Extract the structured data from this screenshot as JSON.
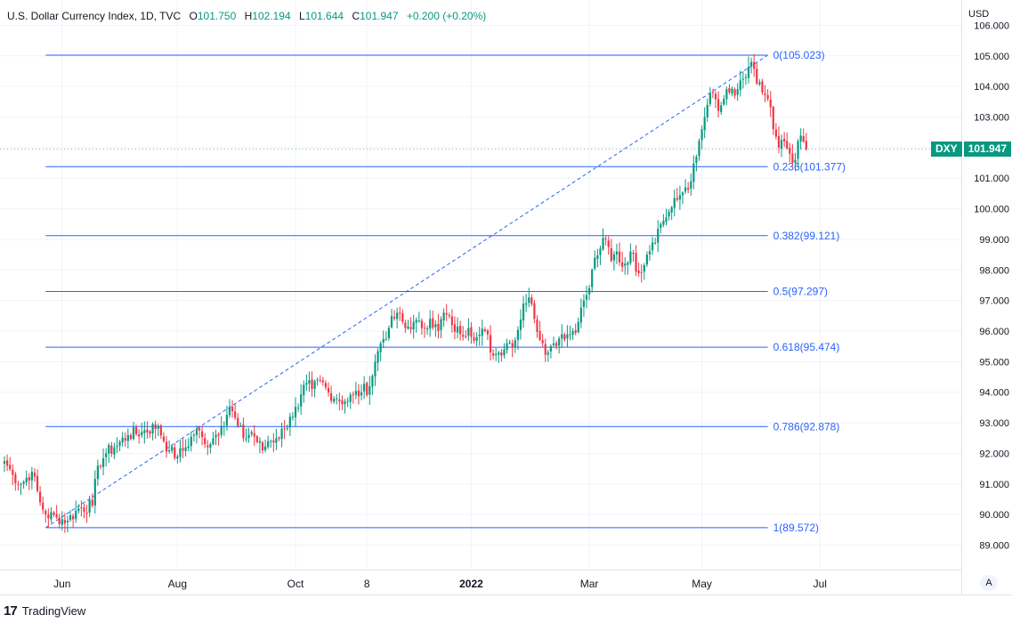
{
  "header": {
    "symbol": "U.S. Dollar Currency Index, 1D, TVC",
    "o_label": "O",
    "o_value": "101.750",
    "h_label": "H",
    "h_value": "102.194",
    "l_label": "L",
    "l_value": "101.644",
    "c_label": "C",
    "c_value": "101.947",
    "change": "+0.200 (+0.20%)"
  },
  "price_label": {
    "symbol": "DXY",
    "value": "101.947"
  },
  "branding": {
    "mark": "17",
    "name": "TradingView"
  },
  "scale_mode_button": "A",
  "colors": {
    "up": "#089981",
    "down": "#f23645",
    "fib": "#2962ff",
    "axis_text": "#131722",
    "grid": "#f0f3fa"
  },
  "chart_data": {
    "type": "candlestick",
    "unit": "USD",
    "ylim": [
      88.2,
      106.1
    ],
    "y_ticks": [
      "89.000",
      "90.000",
      "91.000",
      "92.000",
      "93.000",
      "94.000",
      "95.000",
      "96.000",
      "97.000",
      "98.000",
      "99.000",
      "100.000",
      "101.000",
      "102.000",
      "103.000",
      "104.000",
      "105.000",
      "106.000"
    ],
    "x_ticks": [
      {
        "label": "Jun",
        "bar": 21
      },
      {
        "label": "Aug",
        "bar": 63
      },
      {
        "label": "Oct",
        "bar": 106
      },
      {
        "label": "8",
        "bar": 132
      },
      {
        "label": "2022",
        "bar": 170
      },
      {
        "label": "Mar",
        "bar": 213
      },
      {
        "label": "May",
        "bar": 254
      },
      {
        "label": "Jul",
        "bar": 297
      }
    ],
    "fibonacci": [
      {
        "level": "0",
        "price": 105.023,
        "label": "0(105.023)"
      },
      {
        "level": "0.236",
        "price": 101.377,
        "label": "0.236(101.377)"
      },
      {
        "level": "0.382",
        "price": 99.121,
        "label": "0.382(99.121)"
      },
      {
        "level": "0.5",
        "price": 97.297,
        "label": "0.5(97.297)"
      },
      {
        "level": "0.618",
        "price": 95.474,
        "label": "0.618(95.474)"
      },
      {
        "level": "0.786",
        "price": 92.878,
        "label": "0.786(92.878)"
      },
      {
        "level": "1",
        "price": 89.572,
        "label": "1(89.572)"
      }
    ],
    "fib_start_bar": 15,
    "fib_end_bar": 278,
    "trend_line": {
      "from": {
        "bar": 15,
        "price": 89.572
      },
      "to": {
        "bar": 278,
        "price": 105.023
      }
    },
    "close_anchors": [
      [
        0,
        91.75
      ],
      [
        3,
        91.3
      ],
      [
        6,
        91.0
      ],
      [
        10,
        91.4
      ],
      [
        13,
        90.4
      ],
      [
        15,
        90.0
      ],
      [
        19,
        89.9
      ],
      [
        23,
        89.8
      ],
      [
        27,
        90.2
      ],
      [
        32,
        90.3
      ],
      [
        34,
        91.6
      ],
      [
        37,
        92.0
      ],
      [
        40,
        92.2
      ],
      [
        45,
        92.6
      ],
      [
        50,
        92.7
      ],
      [
        56,
        92.9
      ],
      [
        58,
        92.4
      ],
      [
        60,
        92.1
      ],
      [
        63,
        91.9
      ],
      [
        66,
        92.2
      ],
      [
        70,
        92.8
      ],
      [
        73,
        92.3
      ],
      [
        76,
        92.5
      ],
      [
        79,
        92.9
      ],
      [
        82,
        93.5
      ],
      [
        85,
        92.9
      ],
      [
        87,
        92.5
      ],
      [
        90,
        92.7
      ],
      [
        94,
        92.1
      ],
      [
        96,
        92.4
      ],
      [
        99,
        92.5
      ],
      [
        102,
        92.8
      ],
      [
        104,
        93.2
      ],
      [
        107,
        93.5
      ],
      [
        110,
        94.3
      ],
      [
        112,
        94.1
      ],
      [
        115,
        94.4
      ],
      [
        118,
        94.0
      ],
      [
        121,
        93.8
      ],
      [
        124,
        93.7
      ],
      [
        127,
        93.9
      ],
      [
        130,
        94.0
      ],
      [
        133,
        94.2
      ],
      [
        135,
        95.0
      ],
      [
        137,
        95.6
      ],
      [
        140,
        96.1
      ],
      [
        143,
        96.6
      ],
      [
        146,
        96.1
      ],
      [
        149,
        96.3
      ],
      [
        152,
        96.1
      ],
      [
        155,
        96.4
      ],
      [
        158,
        96.0
      ],
      [
        160,
        96.6
      ],
      [
        163,
        96.2
      ],
      [
        166,
        95.9
      ],
      [
        169,
        96.1
      ],
      [
        172,
        95.8
      ],
      [
        175,
        96.0
      ],
      [
        178,
        95.2
      ],
      [
        180,
        95.3
      ],
      [
        183,
        95.6
      ],
      [
        186,
        95.7
      ],
      [
        189,
        96.9
      ],
      [
        191,
        97.1
      ],
      [
        193,
        96.4
      ],
      [
        196,
        95.6
      ],
      [
        198,
        95.3
      ],
      [
        200,
        95.6
      ],
      [
        203,
        95.9
      ],
      [
        206,
        95.9
      ],
      [
        209,
        96.3
      ],
      [
        211,
        97.0
      ],
      [
        213,
        97.4
      ],
      [
        215,
        98.4
      ],
      [
        217,
        98.7
      ],
      [
        219,
        99.0
      ],
      [
        221,
        98.3
      ],
      [
        223,
        98.6
      ],
      [
        225,
        98.1
      ],
      [
        228,
        98.6
      ],
      [
        231,
        97.9
      ],
      [
        234,
        98.5
      ],
      [
        236,
        98.9
      ],
      [
        239,
        99.5
      ],
      [
        242,
        99.9
      ],
      [
        245,
        100.3
      ],
      [
        248,
        100.7
      ],
      [
        250,
        100.9
      ],
      [
        252,
        101.7
      ],
      [
        254,
        102.6
      ],
      [
        256,
        103.4
      ],
      [
        258,
        103.8
      ],
      [
        260,
        103.2
      ],
      [
        262,
        103.6
      ],
      [
        264,
        103.8
      ],
      [
        266,
        103.7
      ],
      [
        268,
        104.2
      ],
      [
        270,
        104.3
      ],
      [
        272,
        104.8
      ],
      [
        274,
        104.1
      ],
      [
        276,
        103.8
      ],
      [
        278,
        103.6
      ],
      [
        280,
        102.6
      ],
      [
        282,
        102.0
      ],
      [
        284,
        102.2
      ],
      [
        286,
        101.8
      ],
      [
        288,
        101.6
      ],
      [
        290,
        102.4
      ],
      [
        292,
        101.947
      ]
    ]
  }
}
